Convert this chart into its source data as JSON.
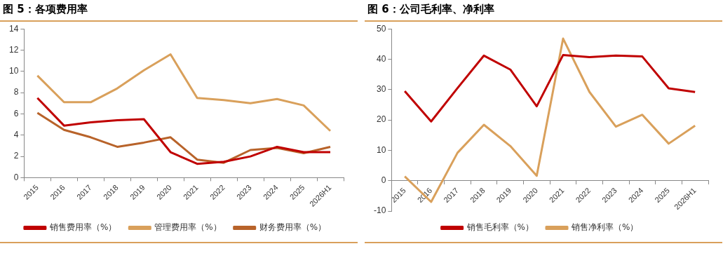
{
  "chart_data": [
    {
      "type": "line",
      "title": "图 5：各项费用率",
      "categories": [
        "2015",
        "2016",
        "2017",
        "2018",
        "2019",
        "2020",
        "2021",
        "2022",
        "2023",
        "2024",
        "2025",
        "2026H1"
      ],
      "series": [
        {
          "name": "销售费用率（%）",
          "color": "#c00000",
          "values": [
            7.5,
            4.9,
            5.2,
            5.4,
            5.5,
            2.4,
            1.3,
            1.5,
            2.0,
            2.9,
            2.4,
            2.4
          ]
        },
        {
          "name": "管理费用率（%）",
          "color": "#d9a05b",
          "values": [
            9.6,
            7.1,
            7.1,
            8.4,
            10.1,
            11.6,
            7.5,
            7.3,
            7.0,
            7.4,
            6.8,
            4.4
          ]
        },
        {
          "name": "财务费用率（%）",
          "color": "#b8632a",
          "values": [
            6.1,
            4.5,
            3.8,
            2.9,
            3.3,
            3.8,
            1.7,
            1.4,
            2.6,
            2.8,
            2.3,
            2.9
          ]
        }
      ],
      "ylim": [
        0,
        14
      ],
      "yticks": [
        0,
        2,
        4,
        6,
        8,
        10,
        12,
        14
      ],
      "grid": false,
      "legend": "bottom",
      "marker": "none",
      "line_style": "solid"
    },
    {
      "type": "line",
      "title": "图 6：公司毛利率、净利率",
      "categories": [
        "2015",
        "2016",
        "2017",
        "2018",
        "2019",
        "2020",
        "2021",
        "2022",
        "2023",
        "2024",
        "2025",
        "2026H1"
      ],
      "series": [
        {
          "name": "销售毛利率（%）",
          "color": "#c00000",
          "values": [
            29.5,
            19.5,
            30.5,
            41.2,
            36.6,
            24.5,
            41.4,
            40.7,
            41.2,
            40.9,
            30.4,
            29.2
          ]
        },
        {
          "name": "销售净利率（%）",
          "color": "#d9a05b",
          "values": [
            1.4,
            -7,
            9.2,
            18.4,
            11.4,
            1.6,
            46.8,
            29.2,
            17.8,
            21.7,
            12.2,
            18.1
          ]
        }
      ],
      "ylim": [
        -10,
        50
      ],
      "yticks": [
        -10,
        0,
        10,
        20,
        30,
        40,
        50
      ],
      "grid": false,
      "legend": "bottom",
      "marker": "none",
      "line_style": "solid"
    }
  ]
}
